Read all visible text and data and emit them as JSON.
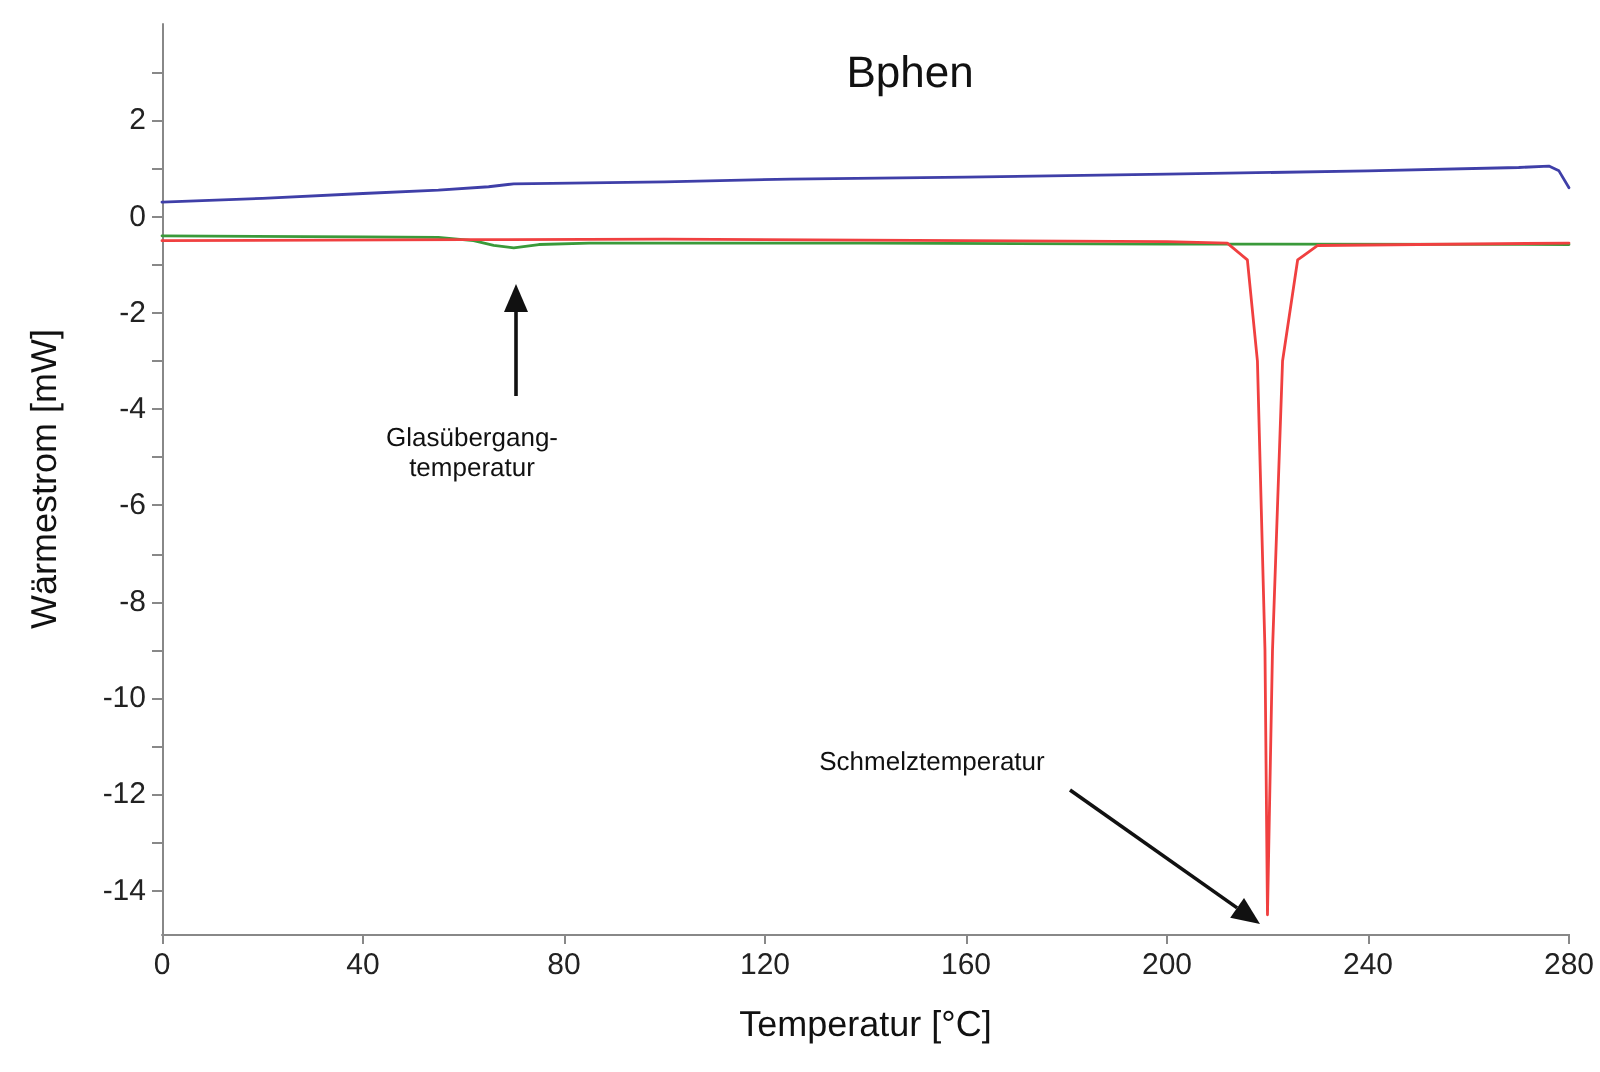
{
  "chart_data": {
    "type": "line",
    "title": "Bphen",
    "xlabel": "Temperatur [°C]",
    "ylabel": "Wärmestrom [mW]",
    "xlim": [
      0,
      280
    ],
    "xticks": [
      0,
      40,
      80,
      120,
      160,
      200,
      240,
      280
    ],
    "ylim": [
      -14.9,
      4
    ],
    "yticks": [
      -14,
      {
        "value": -13,
        "label": null
      },
      -12,
      {
        "value": -11,
        "label": null
      },
      -10,
      {
        "value": -9,
        "label": null
      },
      -8,
      {
        "value": -7,
        "label": null
      },
      -6,
      {
        "value": -5,
        "label": null
      },
      -4,
      {
        "value": -3,
        "label": null
      },
      -2,
      {
        "value": -1,
        "label": null
      },
      0,
      {
        "value": 1,
        "label": null
      },
      2,
      {
        "value": 3,
        "label": null
      }
    ],
    "grid": false,
    "marker": "none",
    "line_style": "solid",
    "series": [
      {
        "color": "#3f3fa8",
        "x": [
          0,
          20,
          40,
          55,
          65,
          70,
          100,
          125,
          160,
          200,
          240,
          270,
          276,
          278,
          280
        ],
        "values": [
          0.3,
          0.38,
          0.48,
          0.55,
          0.62,
          0.68,
          0.72,
          0.78,
          0.82,
          0.88,
          0.95,
          1.02,
          1.05,
          0.95,
          0.6
        ]
      },
      {
        "color": "#3a9a3a",
        "x": [
          0,
          40,
          55,
          62,
          66,
          70,
          75,
          85,
          100,
          140,
          200,
          280
        ],
        "values": [
          -0.4,
          -0.42,
          -0.43,
          -0.5,
          -0.6,
          -0.65,
          -0.58,
          -0.55,
          -0.55,
          -0.55,
          -0.57,
          -0.58
        ]
      },
      {
        "color": "#f04040",
        "x": [
          0,
          60,
          100,
          160,
          200,
          212,
          216,
          218,
          219.5,
          220,
          221,
          223,
          226,
          230,
          250,
          280
        ],
        "values": [
          -0.5,
          -0.48,
          -0.47,
          -0.5,
          -0.52,
          -0.55,
          -0.9,
          -3,
          -9,
          -14.5,
          -9,
          -3,
          -0.9,
          -0.6,
          -0.58,
          -0.55
        ]
      }
    ],
    "annotations": [
      "Glasübergang-temperatur",
      "Schmelztemperatur"
    ]
  }
}
